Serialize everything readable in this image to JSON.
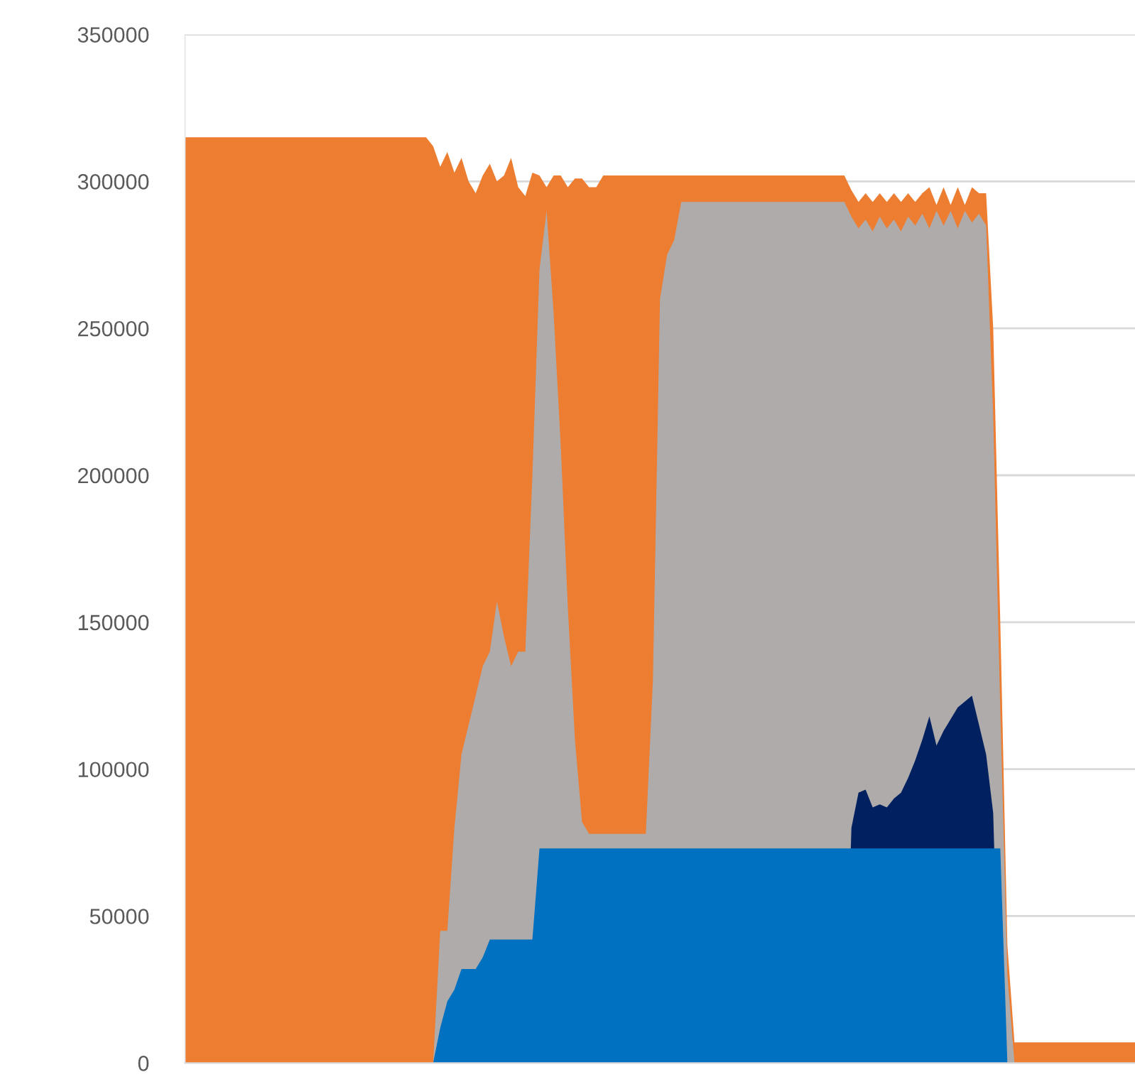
{
  "chart_data": {
    "type": "area",
    "categories": [
      null,
      null,
      null,
      null,
      null,
      null,
      null,
      null,
      null,
      null,
      null,
      null,
      null,
      null,
      null,
      null,
      null,
      null,
      null,
      null,
      null,
      null,
      null,
      null,
      null,
      null,
      null,
      null,
      null,
      null,
      null,
      null,
      null,
      null,
      null,
      null,
      null,
      null,
      null,
      null,
      null,
      null,
      null,
      null,
      null,
      null,
      null,
      null,
      null,
      null,
      null,
      null,
      null,
      null,
      null,
      null,
      null,
      null,
      null,
      null,
      null,
      null,
      null,
      null,
      null,
      null,
      null,
      null,
      null,
      null,
      null,
      null,
      null,
      null,
      null,
      null,
      null,
      null,
      null,
      null,
      null,
      null,
      null,
      null,
      null,
      null,
      null,
      null,
      null,
      null,
      null,
      null,
      null,
      null,
      null,
      null,
      null,
      null,
      null,
      null,
      null,
      null,
      null,
      null,
      null,
      null,
      null,
      null,
      null,
      null,
      null,
      null,
      null,
      null,
      null,
      null,
      null,
      null,
      null,
      null,
      null,
      null,
      null,
      null,
      null,
      null,
      null,
      null,
      null,
      null,
      null,
      null,
      null,
      null,
      null
    ],
    "series": [
      {
        "color": "#ed7d31",
        "values": [
          315000,
          315000,
          315000,
          315000,
          315000,
          315000,
          315000,
          315000,
          315000,
          315000,
          315000,
          315000,
          315000,
          315000,
          315000,
          315000,
          315000,
          315000,
          315000,
          315000,
          315000,
          315000,
          315000,
          315000,
          315000,
          315000,
          315000,
          315000,
          315000,
          315000,
          315000,
          315000,
          315000,
          315000,
          315000,
          312000,
          305000,
          310000,
          303000,
          308000,
          300000,
          296000,
          302000,
          306000,
          300000,
          302000,
          308000,
          298000,
          295000,
          303000,
          302000,
          298000,
          302000,
          302000,
          298000,
          301000,
          301000,
          298000,
          298000,
          302000,
          302000,
          302000,
          302000,
          302000,
          302000,
          302000,
          302000,
          302000,
          302000,
          302000,
          302000,
          302000,
          302000,
          302000,
          302000,
          302000,
          302000,
          302000,
          302000,
          302000,
          302000,
          302000,
          302000,
          302000,
          302000,
          302000,
          302000,
          302000,
          302000,
          302000,
          302000,
          302000,
          302000,
          302000,
          297000,
          293000,
          296000,
          293000,
          296000,
          293000,
          296000,
          293000,
          296000,
          293000,
          296000,
          298000,
          292000,
          298000,
          292000,
          298000,
          292000,
          298000,
          296000,
          296000,
          250000,
          150000,
          40000,
          7000,
          7000,
          7000,
          7000,
          7000,
          7000,
          7000,
          7000,
          7000,
          7000,
          7000,
          7000,
          7000,
          7000,
          7000,
          7000,
          7000,
          7000
        ]
      },
      {
        "color": "#afabab",
        "values": [
          0,
          0,
          0,
          0,
          0,
          0,
          0,
          0,
          0,
          0,
          0,
          0,
          0,
          0,
          0,
          0,
          0,
          0,
          0,
          0,
          0,
          0,
          0,
          0,
          0,
          0,
          0,
          0,
          0,
          0,
          0,
          0,
          0,
          0,
          0,
          0,
          45000,
          45000,
          80000,
          105000,
          115000,
          125000,
          135000,
          140000,
          157000,
          145000,
          135000,
          140000,
          140000,
          200000,
          270000,
          290000,
          255000,
          210000,
          155000,
          110000,
          82000,
          78000,
          78000,
          78000,
          78000,
          78000,
          78000,
          78000,
          78000,
          78000,
          130000,
          260000,
          275000,
          280000,
          293000,
          293000,
          293000,
          293000,
          293000,
          293000,
          293000,
          293000,
          293000,
          293000,
          293000,
          293000,
          293000,
          293000,
          293000,
          293000,
          293000,
          293000,
          293000,
          293000,
          293000,
          293000,
          293000,
          293000,
          288000,
          284000,
          287000,
          283000,
          288000,
          284000,
          287000,
          283000,
          288000,
          285000,
          289000,
          284000,
          290000,
          285000,
          290000,
          284000,
          290000,
          286000,
          289000,
          285000,
          220000,
          120000,
          30000,
          0,
          0,
          0,
          0,
          0,
          0,
          0,
          0,
          0,
          0,
          0,
          0,
          0,
          0,
          0,
          0,
          0,
          0
        ]
      },
      {
        "color": "#002060",
        "values": [
          0,
          0,
          0,
          0,
          0,
          0,
          0,
          0,
          0,
          0,
          0,
          0,
          0,
          0,
          0,
          0,
          0,
          0,
          0,
          0,
          0,
          0,
          0,
          0,
          0,
          0,
          0,
          0,
          0,
          0,
          0,
          0,
          0,
          0,
          0,
          0,
          0,
          0,
          0,
          0,
          0,
          0,
          0,
          0,
          0,
          0,
          0,
          0,
          0,
          0,
          0,
          0,
          0,
          0,
          0,
          0,
          0,
          0,
          0,
          0,
          0,
          0,
          0,
          0,
          0,
          0,
          0,
          0,
          0,
          0,
          0,
          0,
          0,
          0,
          0,
          0,
          0,
          0,
          0,
          0,
          0,
          0,
          0,
          0,
          0,
          0,
          0,
          0,
          0,
          0,
          0,
          0,
          0,
          0,
          80000,
          92000,
          93000,
          87000,
          88000,
          87000,
          90000,
          92000,
          97000,
          103000,
          110000,
          118000,
          108000,
          113000,
          117000,
          121000,
          123000,
          125000,
          115000,
          105000,
          85000,
          0,
          0,
          0,
          0,
          0,
          0,
          0,
          0,
          0,
          0,
          0,
          0,
          0,
          0,
          0,
          0,
          0,
          0,
          0,
          0
        ]
      },
      {
        "color": "#0070c0",
        "values": [
          0,
          0,
          0,
          0,
          0,
          0,
          0,
          0,
          0,
          0,
          0,
          0,
          0,
          0,
          0,
          0,
          0,
          0,
          0,
          0,
          0,
          0,
          0,
          0,
          0,
          0,
          0,
          0,
          0,
          0,
          0,
          0,
          0,
          0,
          0,
          0,
          12000,
          21000,
          25000,
          32000,
          32000,
          32000,
          36000,
          42000,
          42000,
          42000,
          42000,
          42000,
          42000,
          42000,
          73000,
          73000,
          73000,
          73000,
          73000,
          73000,
          73000,
          73000,
          73000,
          73000,
          73000,
          73000,
          73000,
          73000,
          73000,
          73000,
          73000,
          73000,
          73000,
          73000,
          73000,
          73000,
          73000,
          73000,
          73000,
          73000,
          73000,
          73000,
          73000,
          73000,
          73000,
          73000,
          73000,
          73000,
          73000,
          73000,
          73000,
          73000,
          73000,
          73000,
          73000,
          73000,
          73000,
          73000,
          73000,
          73000,
          73000,
          73000,
          73000,
          73000,
          73000,
          73000,
          73000,
          73000,
          73000,
          73000,
          73000,
          73000,
          73000,
          73000,
          73000,
          73000,
          73000,
          73000,
          73000,
          73000,
          0,
          0,
          0,
          0,
          0,
          0,
          0,
          0,
          0,
          0,
          0,
          0,
          0,
          0,
          0,
          0,
          0,
          0,
          0
        ]
      }
    ],
    "ylim": [
      0,
      350000
    ],
    "yticks": [
      0,
      50000,
      100000,
      150000,
      200000,
      250000,
      300000,
      350000
    ],
    "grid": "y",
    "tick_labels": "y"
  }
}
